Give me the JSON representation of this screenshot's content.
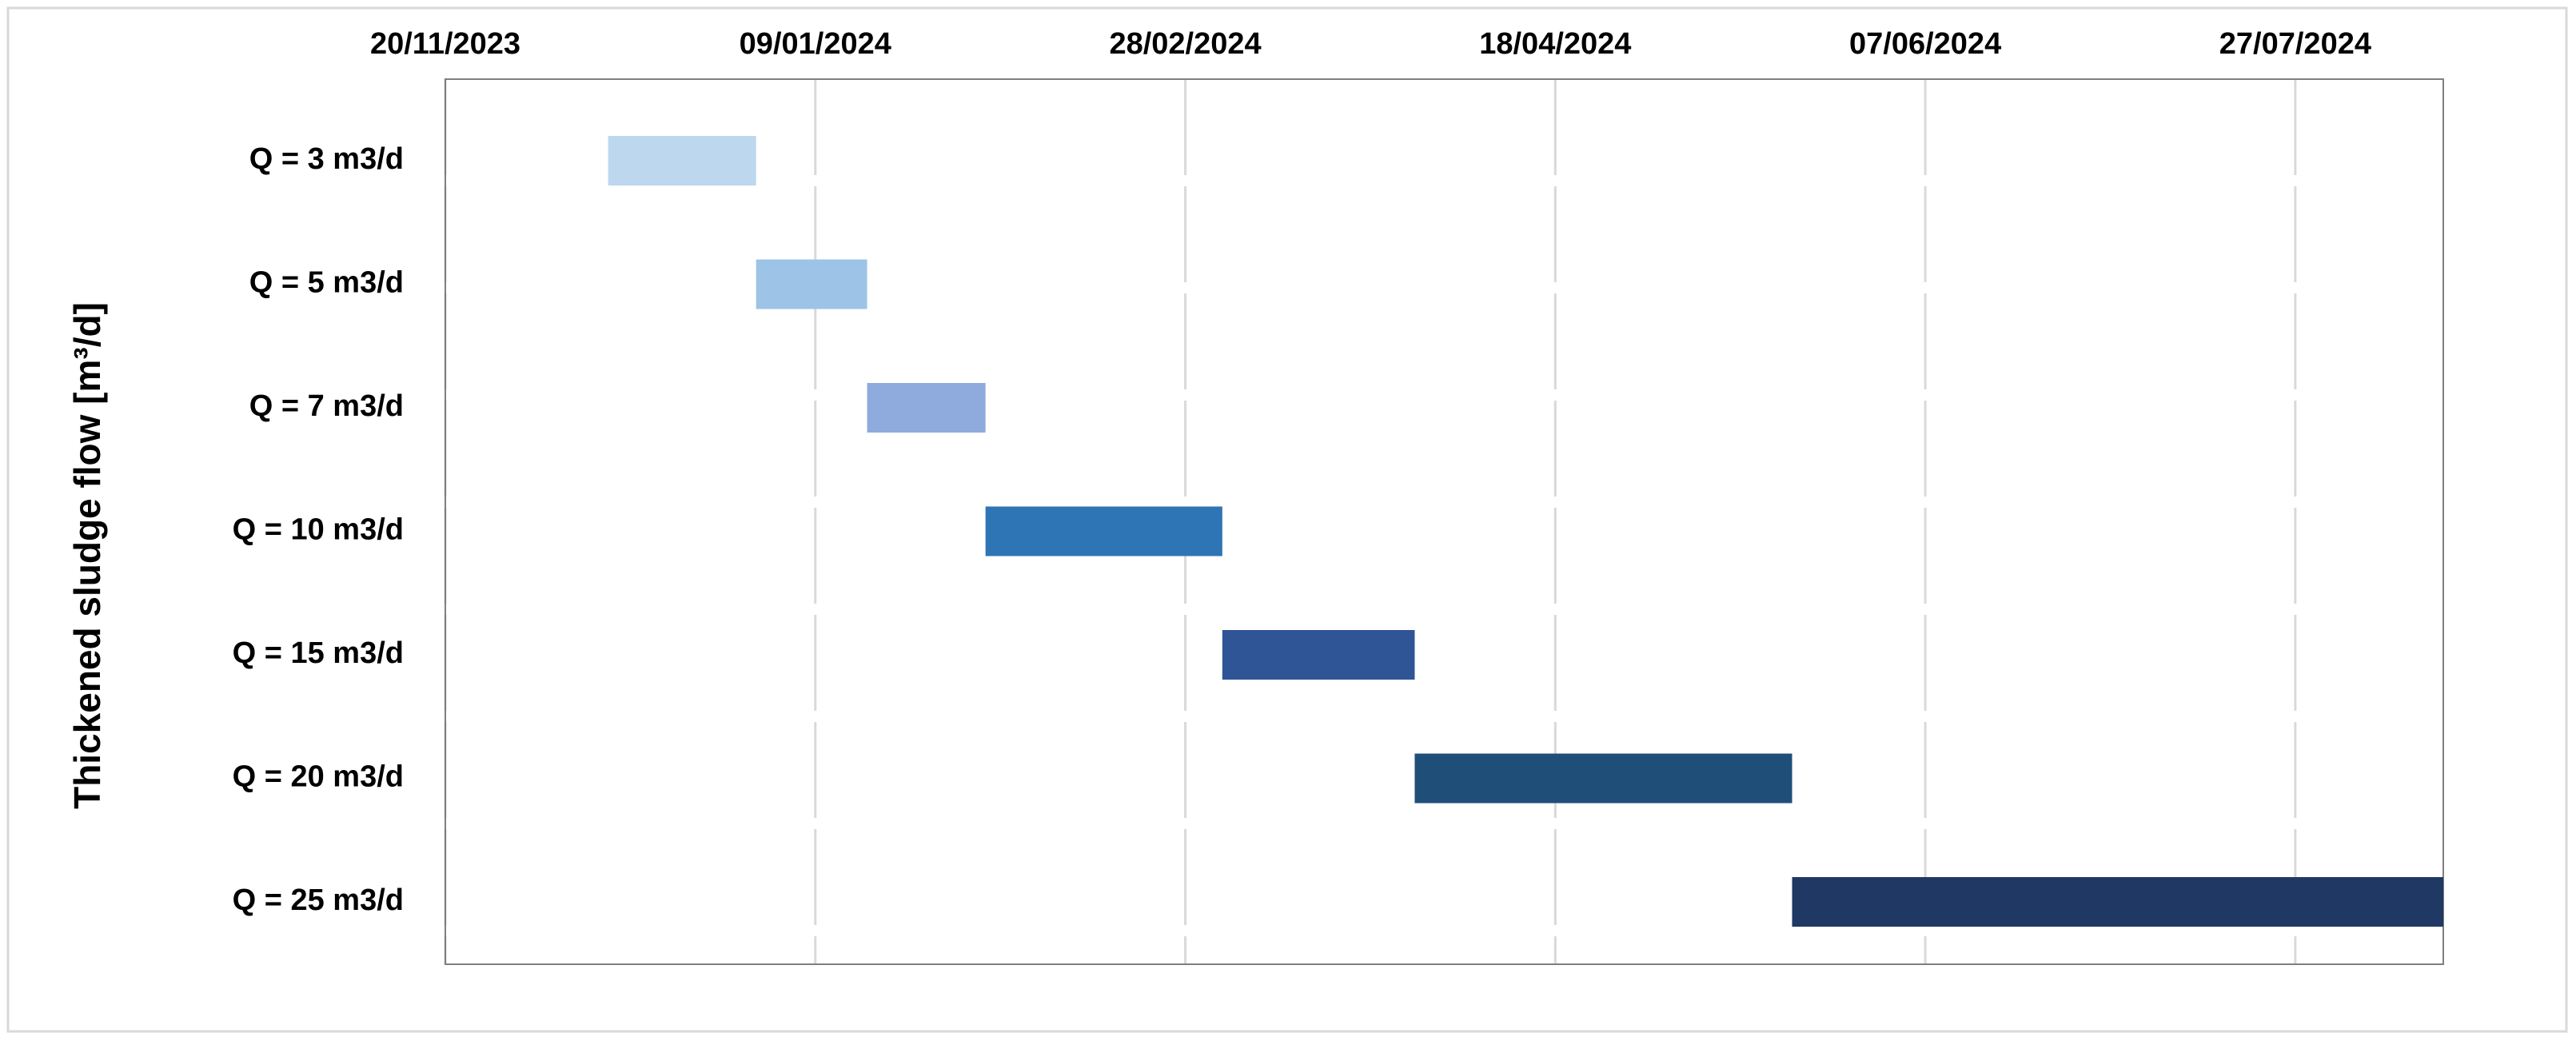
{
  "chart_data": {
    "type": "gantt",
    "y_label": "Thickened sludge flow [m³/d]",
    "categories": [
      "Q = 3 m3/d",
      "Q = 5 m3/d",
      "Q = 7 m3/d",
      "Q = 10 m3/d",
      "Q = 15 m3/d",
      "Q = 20 m3/d",
      "Q = 25 m3/d"
    ],
    "start": [
      "2023-12-12",
      "2024-01-01",
      "2024-01-16",
      "2024-02-01",
      "2024-03-04",
      "2024-03-30",
      "2024-05-20"
    ],
    "end": [
      "2024-01-01",
      "2024-01-16",
      "2024-02-01",
      "2024-03-04",
      "2024-03-30",
      "2024-05-20",
      "2024-08-16"
    ],
    "colors": [
      "#bdd7ee",
      "#9dc3e6",
      "#8faadc",
      "#2e75b6",
      "#2f5597",
      "#1f4e79",
      "#203864"
    ],
    "xlim": [
      "2023-11-20",
      "2024-08-16"
    ],
    "xticks": [
      {
        "value": "2023-11-20",
        "label": "20/11/2023"
      },
      {
        "value": "2024-01-09",
        "label": "09/01/2024"
      },
      {
        "value": "2024-02-28",
        "label": "28/02/2024"
      },
      {
        "value": "2024-04-18",
        "label": "18/04/2024"
      },
      {
        "value": "2024-06-07",
        "label": "07/06/2024"
      },
      {
        "value": "2024-07-27",
        "label": "27/07/2024"
      }
    ],
    "grid": true
  }
}
